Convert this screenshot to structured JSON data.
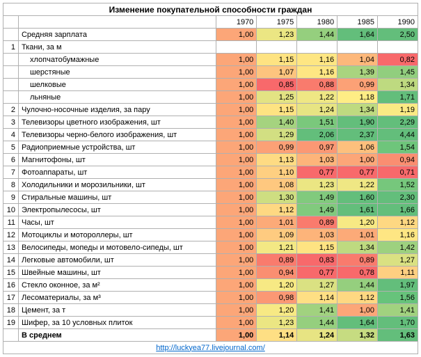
{
  "title": "Изменение покупательной способности граждан",
  "years": [
    "1970",
    "1975",
    "1980",
    "1985",
    "1990"
  ],
  "link": "http://luckyea77.livejournal.com/",
  "colors": {
    "scale": [
      {
        "t": 0.77,
        "c": "#f8696b"
      },
      {
        "t": 0.85,
        "c": "#f8696b"
      },
      {
        "t": 0.89,
        "c": "#f97b6d"
      },
      {
        "t": 0.94,
        "c": "#fa8e71"
      },
      {
        "t": 0.97,
        "c": "#fb9874"
      },
      {
        "t": 0.99,
        "c": "#fca176"
      },
      {
        "t": 1.0,
        "c": "#fca678"
      },
      {
        "t": 1.01,
        "c": "#fcaa78"
      },
      {
        "t": 1.03,
        "c": "#fdb47a"
      },
      {
        "t": 1.04,
        "c": "#fdb87b"
      },
      {
        "t": 1.06,
        "c": "#fdc07d"
      },
      {
        "t": 1.07,
        "c": "#fdc47e"
      },
      {
        "t": 1.08,
        "c": "#fec87f"
      },
      {
        "t": 1.09,
        "c": "#fecb80"
      },
      {
        "t": 1.1,
        "c": "#fecf81"
      },
      {
        "t": 1.12,
        "c": "#fed882"
      },
      {
        "t": 1.13,
        "c": "#fedb83"
      },
      {
        "t": 1.14,
        "c": "#fedf84"
      },
      {
        "t": 1.15,
        "c": "#fee382"
      },
      {
        "t": 1.16,
        "c": "#fee683"
      },
      {
        "t": 1.18,
        "c": "#feed85"
      },
      {
        "t": 1.19,
        "c": "#fbea84"
      },
      {
        "t": 1.2,
        "c": "#f7e984"
      },
      {
        "t": 1.21,
        "c": "#f3e884"
      },
      {
        "t": 1.22,
        "c": "#efe784"
      },
      {
        "t": 1.23,
        "c": "#ebe683"
      },
      {
        "t": 1.24,
        "c": "#e7e483"
      },
      {
        "t": 1.25,
        "c": "#e3e383"
      },
      {
        "t": 1.27,
        "c": "#dae182"
      },
      {
        "t": 1.29,
        "c": "#d2df82"
      },
      {
        "t": 1.3,
        "c": "#cede81"
      },
      {
        "t": 1.32,
        "c": "#c6dc81"
      },
      {
        "t": 1.34,
        "c": "#beda80"
      },
      {
        "t": 1.39,
        "c": "#a9d47f"
      },
      {
        "t": 1.4,
        "c": "#a5d37f"
      },
      {
        "t": 1.41,
        "c": "#a1d27f"
      },
      {
        "t": 1.42,
        "c": "#9dd17f"
      },
      {
        "t": 1.44,
        "c": "#95cf7e"
      },
      {
        "t": 1.45,
        "c": "#91ce7e"
      },
      {
        "t": 1.49,
        "c": "#81ca7d"
      },
      {
        "t": 1.51,
        "c": "#7ac87c"
      },
      {
        "t": 1.52,
        "c": "#76c77c"
      },
      {
        "t": 1.54,
        "c": "#6ec57b"
      },
      {
        "t": 1.56,
        "c": "#67c37b"
      },
      {
        "t": 1.6,
        "c": "#63be7b"
      },
      {
        "t": 1.61,
        "c": "#63be7b"
      },
      {
        "t": 1.63,
        "c": "#63be7b"
      },
      {
        "t": 1.64,
        "c": "#63be7b"
      },
      {
        "t": 1.66,
        "c": "#63be7b"
      },
      {
        "t": 1.7,
        "c": "#63be7b"
      },
      {
        "t": 1.71,
        "c": "#63be7b"
      },
      {
        "t": 1.9,
        "c": "#63be7b"
      },
      {
        "t": 1.97,
        "c": "#63be7b"
      },
      {
        "t": 2.06,
        "c": "#63be7b"
      },
      {
        "t": 2.29,
        "c": "#63be7b"
      },
      {
        "t": 2.3,
        "c": "#63be7b"
      },
      {
        "t": 2.37,
        "c": "#63be7b"
      },
      {
        "t": 2.5,
        "c": "#63be7b"
      },
      {
        "t": 4.44,
        "c": "#63be7b"
      }
    ],
    "col_1970": "#fca678"
  },
  "rows": [
    {
      "num": "",
      "label": "Средняя зарплата",
      "bold": false,
      "values": [
        "1,00",
        "1,23",
        "1,44",
        "1,64",
        "2,50"
      ],
      "nums": [
        1.0,
        1.23,
        1.44,
        1.64,
        2.5
      ]
    },
    {
      "num": "1",
      "label": "Ткани, за м",
      "bold": false,
      "values": null
    },
    {
      "num": "",
      "label": "хлопчатобумажные",
      "indent": true,
      "values": [
        "1,00",
        "1,15",
        "1,16",
        "1,04",
        "0,82"
      ],
      "nums": [
        1.0,
        1.15,
        1.16,
        1.04,
        0.82
      ]
    },
    {
      "num": "",
      "label": "шерстяные",
      "indent": true,
      "values": [
        "1,00",
        "1,07",
        "1,16",
        "1,39",
        "1,45"
      ],
      "nums": [
        1.0,
        1.07,
        1.16,
        1.39,
        1.45
      ]
    },
    {
      "num": "",
      "label": "шелковые",
      "indent": true,
      "values": [
        "1,00",
        "0,85",
        "0,88",
        "0,99",
        "1,34"
      ],
      "nums": [
        1.0,
        0.85,
        0.88,
        0.99,
        1.34
      ]
    },
    {
      "num": "",
      "label": "льняные",
      "indent": true,
      "values": [
        "1,00",
        "1,25",
        "1,22",
        "1,18",
        "1,71"
      ],
      "nums": [
        1.0,
        1.25,
        1.22,
        1.18,
        1.71
      ]
    },
    {
      "num": "2",
      "label": "Чулочно-носочные изделия, за пару",
      "values": [
        "1,00",
        "1,15",
        "1,24",
        "1,34",
        "1,19"
      ],
      "nums": [
        1.0,
        1.15,
        1.24,
        1.34,
        1.19
      ]
    },
    {
      "num": "3",
      "label": "Телевизоры цветного изображения, шт",
      "values": [
        "1,00",
        "1,40",
        "1,51",
        "1,90",
        "2,29"
      ],
      "nums": [
        1.0,
        1.4,
        1.51,
        1.9,
        2.29
      ]
    },
    {
      "num": "4",
      "label": "Телевизоры черно-белого изображения, шт",
      "values": [
        "1,00",
        "1,29",
        "2,06",
        "2,37",
        "4,44"
      ],
      "nums": [
        1.0,
        1.29,
        2.06,
        2.37,
        4.44
      ]
    },
    {
      "num": "5",
      "label": "Радиоприемные устройства, шт",
      "values": [
        "1,00",
        "0,99",
        "0,97",
        "1,06",
        "1,54"
      ],
      "nums": [
        1.0,
        0.99,
        0.97,
        1.06,
        1.54
      ]
    },
    {
      "num": "6",
      "label": "Магнитофоны, шт",
      "values": [
        "1,00",
        "1,13",
        "1,03",
        "1,00",
        "0,94"
      ],
      "nums": [
        1.0,
        1.13,
        1.03,
        1.0,
        0.94
      ]
    },
    {
      "num": "7",
      "label": "Фотоаппараты, шт",
      "values": [
        "1,00",
        "1,10",
        "0,77",
        "0,77",
        "0,71"
      ],
      "nums": [
        1.0,
        1.1,
        0.77,
        0.77,
        0.71
      ]
    },
    {
      "num": "8",
      "label": "Холодильники и морозильники, шт",
      "values": [
        "1,00",
        "1,08",
        "1,23",
        "1,22",
        "1,52"
      ],
      "nums": [
        1.0,
        1.08,
        1.23,
        1.22,
        1.52
      ]
    },
    {
      "num": "9",
      "label": "Стиральные машины, шт",
      "values": [
        "1,00",
        "1,30",
        "1,49",
        "1,60",
        "2,30"
      ],
      "nums": [
        1.0,
        1.3,
        1.49,
        1.6,
        2.3
      ]
    },
    {
      "num": "10",
      "label": "Электропылесосы, шт",
      "values": [
        "1,00",
        "1,12",
        "1,49",
        "1,61",
        "1,66"
      ],
      "nums": [
        1.0,
        1.12,
        1.49,
        1.61,
        1.66
      ]
    },
    {
      "num": "11",
      "label": "Часы, шт",
      "values": [
        "1,00",
        "1,01",
        "0,89",
        "1,20",
        "1,12"
      ],
      "nums": [
        1.0,
        1.01,
        0.89,
        1.2,
        1.12
      ]
    },
    {
      "num": "12",
      "label": "Мотоциклы и мотороллеры, шт",
      "values": [
        "1,00",
        "1,09",
        "1,03",
        "1,01",
        "1,16"
      ],
      "nums": [
        1.0,
        1.09,
        1.03,
        1.01,
        1.16
      ]
    },
    {
      "num": "13",
      "label": "Велосипеды, мопеды и мотовело-сипеды, шт",
      "values": [
        "1,00",
        "1,21",
        "1,15",
        "1,34",
        "1,42"
      ],
      "nums": [
        1.0,
        1.21,
        1.15,
        1.34,
        1.42
      ]
    },
    {
      "num": "14",
      "label": "Легковые автомобили, шт",
      "values": [
        "1,00",
        "0,89",
        "0,83",
        "0,89",
        "1,27"
      ],
      "nums": [
        1.0,
        0.89,
        0.83,
        0.89,
        1.27
      ]
    },
    {
      "num": "15",
      "label": "Швейные машины, шт",
      "values": [
        "1,00",
        "0,94",
        "0,77",
        "0,78",
        "1,11"
      ],
      "nums": [
        1.0,
        0.94,
        0.77,
        0.78,
        1.11
      ]
    },
    {
      "num": "16",
      "label": "Стекло оконное, за м²",
      "values": [
        "1,00",
        "1,20",
        "1,27",
        "1,44",
        "1,97"
      ],
      "nums": [
        1.0,
        1.2,
        1.27,
        1.44,
        1.97
      ]
    },
    {
      "num": "17",
      "label": "Лесоматериалы, за м³",
      "values": [
        "1,00",
        "0,98",
        "1,14",
        "1,12",
        "1,56"
      ],
      "nums": [
        1.0,
        0.98,
        1.14,
        1.12,
        1.56
      ]
    },
    {
      "num": "18",
      "label": "Цемент, за т",
      "values": [
        "1,00",
        "1,20",
        "1,41",
        "1,00",
        "1,41"
      ],
      "nums": [
        1.0,
        1.2,
        1.41,
        1.0,
        1.41
      ]
    },
    {
      "num": "19",
      "label": "Шифер, за 10 условных плиток",
      "values": [
        "1,00",
        "1,23",
        "1,44",
        "1,64",
        "1,70"
      ],
      "nums": [
        1.0,
        1.23,
        1.44,
        1.64,
        1.7
      ]
    },
    {
      "num": "",
      "label": "В среднем",
      "bold": true,
      "values": [
        "1,00",
        "1,14",
        "1,24",
        "1,32",
        "1,63"
      ],
      "nums": [
        1.0,
        1.14,
        1.24,
        1.32,
        1.63
      ]
    }
  ]
}
